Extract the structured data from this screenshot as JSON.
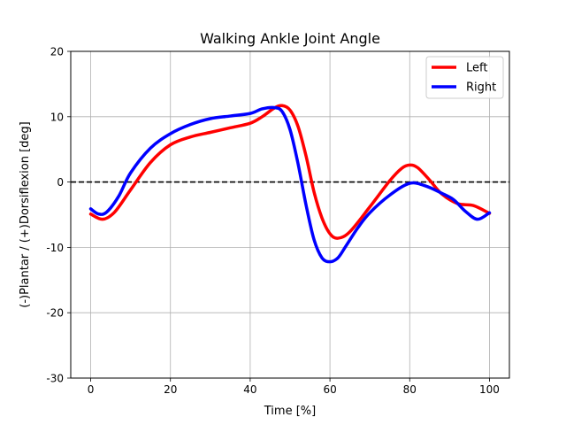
{
  "chart_data": {
    "type": "line",
    "title": "Walking Ankle Joint Angle",
    "xlabel": "Time [%]",
    "ylabel": "(-)Plantar / (+)Dorsiflexion [deg]",
    "xlim": [
      -5,
      105
    ],
    "ylim": [
      -30,
      20
    ],
    "xticks": [
      0,
      20,
      40,
      60,
      80,
      100
    ],
    "yticks": [
      -30,
      -20,
      -10,
      0,
      10,
      20
    ],
    "grid": true,
    "legend_position": "top-right",
    "reference_line": {
      "y": 0,
      "style": "dashed",
      "color": "#000000"
    },
    "series": [
      {
        "name": "Left",
        "color": "#ff0000",
        "x": [
          0,
          3,
          6,
          10,
          15,
          20,
          25,
          30,
          35,
          40,
          43,
          46,
          48,
          50,
          52,
          54,
          56,
          58,
          60,
          62,
          65,
          70,
          75,
          78,
          80,
          82,
          85,
          88,
          92,
          96,
          100
        ],
        "y": [
          -4.9,
          -5.7,
          -4.6,
          -1.2,
          3.0,
          5.7,
          6.9,
          7.6,
          8.3,
          9.0,
          10.0,
          11.3,
          11.7,
          11.0,
          8.5,
          4.0,
          -1.5,
          -5.5,
          -7.9,
          -8.6,
          -7.6,
          -3.8,
          0.2,
          2.1,
          2.6,
          2.2,
          0.3,
          -1.8,
          -3.3,
          -3.6,
          -4.8
        ]
      },
      {
        "name": "Right",
        "color": "#0000ff",
        "x": [
          0,
          2,
          4,
          7,
          10,
          15,
          20,
          25,
          30,
          35,
          40,
          43,
          46,
          48,
          50,
          52,
          54,
          56,
          58,
          60,
          62,
          64,
          67,
          70,
          75,
          80,
          84,
          88,
          91,
          94,
          97,
          100
        ],
        "y": [
          -4.1,
          -4.9,
          -4.6,
          -2.2,
          1.4,
          5.2,
          7.4,
          8.8,
          9.7,
          10.1,
          10.5,
          11.2,
          11.4,
          10.8,
          8.0,
          2.8,
          -3.5,
          -8.8,
          -11.6,
          -12.2,
          -11.6,
          -9.8,
          -7.0,
          -4.7,
          -2.0,
          -0.2,
          -0.6,
          -1.7,
          -2.7,
          -4.5,
          -5.7,
          -4.7
        ]
      }
    ]
  }
}
